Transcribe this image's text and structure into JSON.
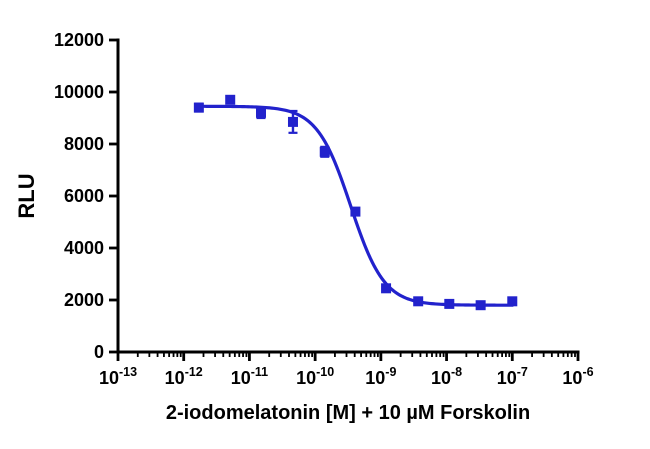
{
  "chart_data": {
    "type": "scatter",
    "title": "",
    "xlabel": "2-iodomelatonin [M] + 10 µM Forskolin",
    "ylabel": "RLU",
    "x_scale": "log10",
    "x_log_min": -13,
    "x_log_max": -6,
    "x_tick_exponents": [
      -13,
      -12,
      -11,
      -10,
      -9,
      -8,
      -7,
      -6
    ],
    "x_minor_ticks": "log",
    "ylim": [
      0,
      12000
    ],
    "y_ticks": [
      0,
      2000,
      4000,
      6000,
      8000,
      10000,
      12000
    ],
    "grid": false,
    "legend": "none",
    "series": [
      {
        "marker": "square",
        "color": "#2222cc",
        "x": [
          1.7e-12,
          5.1e-12,
          1.5e-11,
          4.6e-11,
          1.4e-10,
          4.1e-10,
          1.2e-09,
          3.7e-09,
          1.1e-08,
          3.3e-08,
          1e-07
        ],
        "y": [
          9400,
          9700,
          9200,
          8850,
          7700,
          5400,
          2450,
          1950,
          1850,
          1800,
          1950
        ],
        "y_err": [
          150,
          130,
          200,
          420,
          190,
          120,
          100,
          80,
          90,
          80,
          110
        ]
      }
    ],
    "fit": {
      "model": "sigmoidal dose-response (decreasing)",
      "top": 9450,
      "bottom": 1800,
      "log_ic50": -9.46,
      "hill": 1.7
    }
  }
}
